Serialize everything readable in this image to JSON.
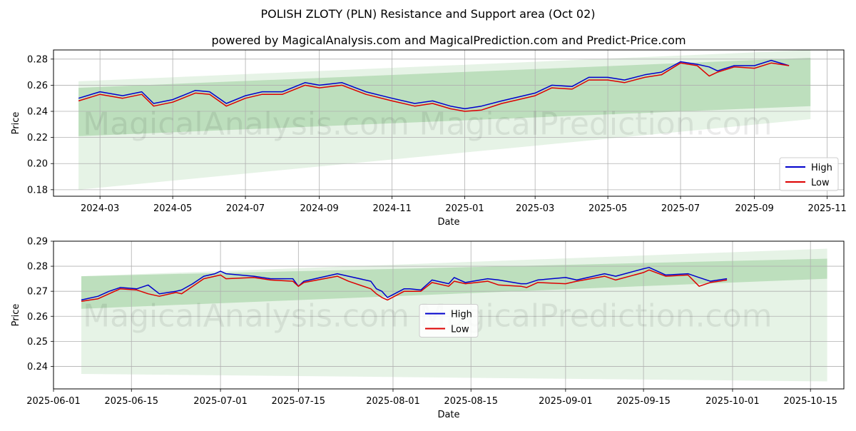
{
  "title": "POLISH ZLOTY (PLN) Resistance and Support area (Oct 02)",
  "subtitle": "powered by MagicalAnalysis.com and MagicalPrediction.com and Predict-Price.com",
  "watermarks": [
    "MagicalAnalysis.com",
    "MagicalPrediction.com"
  ],
  "colors": {
    "high": "#0000cc",
    "low": "#dd0000",
    "band": "#2e9a2e",
    "grid": "#b0b0b0"
  },
  "chart_data": [
    {
      "type": "line",
      "name": "top-chart",
      "xlabel": "Date",
      "ylabel": "Price",
      "xlim": [
        "2024-01-22",
        "2025-11-15"
      ],
      "ylim": [
        0.175,
        0.287
      ],
      "x_ticks": [
        {
          "date": "2024-03-01",
          "label": "2024-03"
        },
        {
          "date": "2024-05-01",
          "label": "2024-05"
        },
        {
          "date": "2024-07-01",
          "label": "2024-07"
        },
        {
          "date": "2024-09-01",
          "label": "2024-09"
        },
        {
          "date": "2024-11-01",
          "label": "2024-11"
        },
        {
          "date": "2025-01-01",
          "label": "2025-01"
        },
        {
          "date": "2025-03-01",
          "label": "2025-03"
        },
        {
          "date": "2025-05-01",
          "label": "2025-05"
        },
        {
          "date": "2025-07-01",
          "label": "2025-07"
        },
        {
          "date": "2025-09-01",
          "label": "2025-09"
        },
        {
          "date": "2025-11-01",
          "label": "2025-11"
        }
      ],
      "y_ticks": [
        {
          "value": 0.18,
          "label": "0.18"
        },
        {
          "value": 0.2,
          "label": "0.20"
        },
        {
          "value": 0.22,
          "label": "0.22"
        },
        {
          "value": 0.24,
          "label": "0.24"
        },
        {
          "value": 0.26,
          "label": "0.26"
        },
        {
          "value": 0.28,
          "label": "0.28"
        }
      ],
      "legend": {
        "position": "lower-right",
        "items": [
          {
            "label": "High",
            "series": "high"
          },
          {
            "label": "Low",
            "series": "low"
          }
        ]
      },
      "bands": [
        {
          "name": "outer-band",
          "opacity": 0.12,
          "start": "2024-02-12",
          "end": "2025-10-18",
          "upper": [
            0.263,
            0.287
          ],
          "lower": [
            0.18,
            0.234
          ]
        },
        {
          "name": "inner-band",
          "opacity": 0.22,
          "start": "2024-02-12",
          "end": "2025-10-18",
          "upper": [
            0.258,
            0.281
          ],
          "lower": [
            0.221,
            0.244
          ]
        }
      ],
      "series": [
        {
          "name": "High",
          "x": [
            "2024-02-12",
            "2024-03-01",
            "2024-03-20",
            "2024-04-05",
            "2024-04-15",
            "2024-05-01",
            "2024-05-20",
            "2024-06-01",
            "2024-06-15",
            "2024-07-01",
            "2024-07-15",
            "2024-08-01",
            "2024-08-20",
            "2024-09-01",
            "2024-09-20",
            "2024-10-10",
            "2024-11-01",
            "2024-11-20",
            "2024-12-05",
            "2024-12-20",
            "2025-01-01",
            "2025-01-15",
            "2025-02-01",
            "2025-02-15",
            "2025-03-01",
            "2025-03-15",
            "2025-04-01",
            "2025-04-15",
            "2025-05-01",
            "2025-05-15",
            "2025-06-01",
            "2025-06-15",
            "2025-07-01",
            "2025-07-15",
            "2025-07-25",
            "2025-08-01",
            "2025-08-15",
            "2025-09-01",
            "2025-09-15",
            "2025-09-30"
          ],
          "values": [
            0.25,
            0.255,
            0.252,
            0.255,
            0.246,
            0.249,
            0.256,
            0.255,
            0.246,
            0.252,
            0.255,
            0.255,
            0.262,
            0.26,
            0.262,
            0.255,
            0.25,
            0.246,
            0.248,
            0.244,
            0.242,
            0.244,
            0.248,
            0.251,
            0.254,
            0.26,
            0.259,
            0.266,
            0.266,
            0.264,
            0.268,
            0.27,
            0.278,
            0.276,
            0.274,
            0.271,
            0.275,
            0.275,
            0.279,
            0.275
          ]
        },
        {
          "name": "Low",
          "x": [
            "2024-02-12",
            "2024-03-01",
            "2024-03-20",
            "2024-04-05",
            "2024-04-15",
            "2024-05-01",
            "2024-05-20",
            "2024-06-01",
            "2024-06-15",
            "2024-07-01",
            "2024-07-15",
            "2024-08-01",
            "2024-08-20",
            "2024-09-01",
            "2024-09-20",
            "2024-10-10",
            "2024-11-01",
            "2024-11-20",
            "2024-12-05",
            "2024-12-20",
            "2025-01-01",
            "2025-01-15",
            "2025-02-01",
            "2025-02-15",
            "2025-03-01",
            "2025-03-15",
            "2025-04-01",
            "2025-04-15",
            "2025-05-01",
            "2025-05-15",
            "2025-06-01",
            "2025-06-15",
            "2025-07-01",
            "2025-07-15",
            "2025-07-25",
            "2025-08-01",
            "2025-08-15",
            "2025-09-01",
            "2025-09-15",
            "2025-09-30"
          ],
          "values": [
            0.248,
            0.253,
            0.25,
            0.253,
            0.244,
            0.247,
            0.254,
            0.253,
            0.244,
            0.25,
            0.253,
            0.253,
            0.26,
            0.258,
            0.26,
            0.253,
            0.248,
            0.244,
            0.246,
            0.242,
            0.24,
            0.241,
            0.246,
            0.249,
            0.252,
            0.258,
            0.257,
            0.264,
            0.264,
            0.262,
            0.266,
            0.268,
            0.277,
            0.275,
            0.267,
            0.27,
            0.274,
            0.273,
            0.277,
            0.275
          ]
        }
      ]
    },
    {
      "type": "line",
      "name": "bottom-chart",
      "xlabel": "Date",
      "ylabel": "Price",
      "xlim": [
        "2025-06-01",
        "2025-10-21"
      ],
      "ylim": [
        0.231,
        0.29
      ],
      "x_ticks": [
        {
          "date": "2025-06-01",
          "label": "2025-06-01"
        },
        {
          "date": "2025-06-15",
          "label": "2025-06-15"
        },
        {
          "date": "2025-07-01",
          "label": "2025-07-01"
        },
        {
          "date": "2025-07-15",
          "label": "2025-07-15"
        },
        {
          "date": "2025-08-01",
          "label": "2025-08-01"
        },
        {
          "date": "2025-08-15",
          "label": "2025-08-15"
        },
        {
          "date": "2025-09-01",
          "label": "2025-09-01"
        },
        {
          "date": "2025-09-15",
          "label": "2025-09-15"
        },
        {
          "date": "2025-10-01",
          "label": "2025-10-01"
        },
        {
          "date": "2025-10-15",
          "label": "2025-10-15"
        }
      ],
      "y_ticks": [
        {
          "value": 0.24,
          "label": "0.24"
        },
        {
          "value": 0.25,
          "label": "0.25"
        },
        {
          "value": 0.26,
          "label": "0.26"
        },
        {
          "value": 0.27,
          "label": "0.27"
        },
        {
          "value": 0.28,
          "label": "0.28"
        },
        {
          "value": 0.29,
          "label": "0.29"
        }
      ],
      "legend": {
        "position": "center",
        "items": [
          {
            "label": "High",
            "series": "high"
          },
          {
            "label": "Low",
            "series": "low"
          }
        ]
      },
      "bands": [
        {
          "name": "outer-band",
          "opacity": 0.12,
          "start": "2025-06-06",
          "end": "2025-10-18",
          "upper": [
            0.276,
            0.287
          ],
          "lower": [
            0.237,
            0.234
          ]
        },
        {
          "name": "inner-band",
          "opacity": 0.22,
          "start": "2025-06-06",
          "end": "2025-10-18",
          "upper": [
            0.276,
            0.283
          ],
          "lower": [
            0.263,
            0.275
          ]
        }
      ],
      "series": [
        {
          "name": "High",
          "x": [
            "2025-06-06",
            "2025-06-09",
            "2025-06-11",
            "2025-06-13",
            "2025-06-16",
            "2025-06-18",
            "2025-06-20",
            "2025-06-23",
            "2025-06-24",
            "2025-06-26",
            "2025-06-28",
            "2025-06-30",
            "2025-07-01",
            "2025-07-02",
            "2025-07-07",
            "2025-07-10",
            "2025-07-14",
            "2025-07-15",
            "2025-07-16",
            "2025-07-22",
            "2025-07-24",
            "2025-07-28",
            "2025-07-29",
            "2025-07-30",
            "2025-07-31",
            "2025-08-03",
            "2025-08-04",
            "2025-08-06",
            "2025-08-08",
            "2025-08-11",
            "2025-08-12",
            "2025-08-14",
            "2025-08-18",
            "2025-08-20",
            "2025-08-24",
            "2025-08-25",
            "2025-08-27",
            "2025-09-01",
            "2025-09-03",
            "2025-09-08",
            "2025-09-10",
            "2025-09-15",
            "2025-09-16",
            "2025-09-19",
            "2025-09-23",
            "2025-09-25",
            "2025-09-27",
            "2025-09-30"
          ],
          "values": [
            0.2665,
            0.268,
            0.27,
            0.2715,
            0.271,
            0.2725,
            0.269,
            0.27,
            0.2705,
            0.273,
            0.276,
            0.277,
            0.278,
            0.277,
            0.276,
            0.275,
            0.275,
            0.272,
            0.274,
            0.277,
            0.276,
            0.274,
            0.271,
            0.27,
            0.2675,
            0.271,
            0.271,
            0.2705,
            0.2745,
            0.273,
            0.2755,
            0.2735,
            0.275,
            0.2745,
            0.273,
            0.273,
            0.2745,
            0.2755,
            0.2745,
            0.277,
            0.276,
            0.279,
            0.2795,
            0.2765,
            0.277,
            0.2755,
            0.274,
            0.275
          ]
        },
        {
          "name": "Low",
          "x": [
            "2025-06-06",
            "2025-06-09",
            "2025-06-11",
            "2025-06-13",
            "2025-06-16",
            "2025-06-18",
            "2025-06-20",
            "2025-06-23",
            "2025-06-24",
            "2025-06-26",
            "2025-06-28",
            "2025-06-30",
            "2025-07-01",
            "2025-07-02",
            "2025-07-07",
            "2025-07-10",
            "2025-07-14",
            "2025-07-15",
            "2025-07-16",
            "2025-07-22",
            "2025-07-24",
            "2025-07-28",
            "2025-07-29",
            "2025-07-30",
            "2025-07-31",
            "2025-08-03",
            "2025-08-04",
            "2025-08-06",
            "2025-08-08",
            "2025-08-11",
            "2025-08-12",
            "2025-08-14",
            "2025-08-18",
            "2025-08-20",
            "2025-08-24",
            "2025-08-25",
            "2025-08-27",
            "2025-09-01",
            "2025-09-03",
            "2025-09-08",
            "2025-09-10",
            "2025-09-15",
            "2025-09-16",
            "2025-09-19",
            "2025-09-23",
            "2025-09-25",
            "2025-09-27",
            "2025-09-30"
          ],
          "values": [
            0.266,
            0.267,
            0.269,
            0.271,
            0.2705,
            0.269,
            0.268,
            0.2695,
            0.269,
            0.272,
            0.275,
            0.276,
            0.2765,
            0.275,
            0.2755,
            0.2745,
            0.274,
            0.272,
            0.2735,
            0.276,
            0.274,
            0.271,
            0.269,
            0.2675,
            0.2665,
            0.27,
            0.27,
            0.27,
            0.2735,
            0.272,
            0.274,
            0.273,
            0.274,
            0.2725,
            0.272,
            0.2715,
            0.2735,
            0.273,
            0.274,
            0.276,
            0.2745,
            0.2775,
            0.2785,
            0.276,
            0.2765,
            0.272,
            0.2735,
            0.2745
          ]
        }
      ]
    }
  ]
}
